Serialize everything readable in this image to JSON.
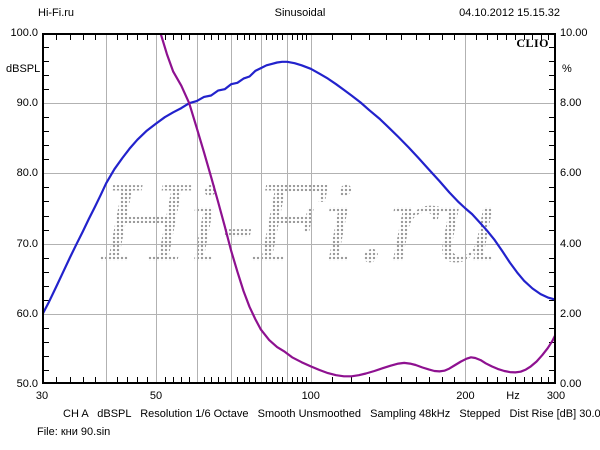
{
  "header": {
    "site": "Hi-Fi.ru",
    "title": "Sinusoidal",
    "datetime": "04.10.2012 15.15.32"
  },
  "brand": {
    "logo": "CLIO"
  },
  "watermark": {
    "text": "Hi-Fi.ru"
  },
  "footer": {
    "status": "CH A   dBSPL   Resolution 1/6 Octave   Smooth Unsmoothed   Sampling 48kHz   Stepped   Dist Rise [dB] 30.00",
    "file": "File: кни 90.sin"
  },
  "colors": {
    "spl_curve": "#2222cc",
    "thd_curve": "#8e1190",
    "gridline": "#b2b2b2",
    "frame": "#000000",
    "watermark_dots": "#9b9b9b"
  },
  "chart_data": {
    "type": "line",
    "title": "Sinusoidal",
    "grid": true,
    "x_axis": {
      "scale": "log",
      "min": 30,
      "max": 300,
      "unit": "Hz",
      "ticks": [
        {
          "value": 30,
          "label": "30"
        },
        {
          "value": 50,
          "label": "50"
        },
        {
          "value": 100,
          "label": "100"
        },
        {
          "value": 200,
          "label": "200"
        },
        {
          "value": 300,
          "label": "300"
        }
      ],
      "gridlines": [
        40,
        50,
        60,
        70,
        80,
        90,
        100,
        200
      ],
      "minor_ticks": [
        32,
        34,
        36,
        38,
        42,
        44,
        46,
        48,
        52,
        54,
        56,
        58,
        62,
        64,
        66,
        68,
        72,
        74,
        76,
        78,
        82,
        84,
        86,
        88,
        92,
        94,
        96,
        98,
        110,
        120,
        130,
        140,
        150,
        160,
        170,
        180,
        190,
        210,
        220,
        230,
        240,
        250,
        260,
        270,
        280,
        290
      ]
    },
    "y_left": {
      "label": "dBSPL",
      "min": 50,
      "max": 100,
      "ticks": [
        {
          "value": 100,
          "label": "100.0"
        },
        {
          "value": 90,
          "label": "90.0"
        },
        {
          "value": 80,
          "label": "80.0"
        },
        {
          "value": 70,
          "label": "70.0"
        },
        {
          "value": 60,
          "label": "60.0"
        },
        {
          "value": 50,
          "label": "50.0"
        }
      ],
      "gridlines": [
        90,
        80,
        70,
        60
      ],
      "minor_ticks": [
        52,
        54,
        56,
        58,
        62,
        64,
        66,
        68,
        72,
        74,
        76,
        78,
        82,
        84,
        86,
        88,
        92,
        94,
        96,
        98
      ]
    },
    "y_right": {
      "label": "%",
      "min": 0,
      "max": 10,
      "ticks": [
        {
          "value": 10,
          "label": "10.00"
        },
        {
          "value": 8,
          "label": "8.00"
        },
        {
          "value": 6,
          "label": "6.00"
        },
        {
          "value": 4,
          "label": "4.00"
        },
        {
          "value": 2,
          "label": "2.00"
        },
        {
          "value": 0,
          "label": "0.00"
        }
      ]
    },
    "series": [
      {
        "name": "SPL (dBSPL, left axis)",
        "axis": "left",
        "color": "#2222cc",
        "points": [
          [
            30,
            59.8
          ],
          [
            31,
            61.8
          ],
          [
            32,
            63.9
          ],
          [
            33,
            66.0
          ],
          [
            34,
            68.0
          ],
          [
            35,
            69.9
          ],
          [
            36,
            71.7
          ],
          [
            37,
            73.5
          ],
          [
            38,
            75.2
          ],
          [
            39,
            76.9
          ],
          [
            40,
            78.6
          ],
          [
            41.5,
            80.6
          ],
          [
            43,
            82.2
          ],
          [
            44.5,
            83.6
          ],
          [
            46,
            84.8
          ],
          [
            48,
            86.1
          ],
          [
            50,
            87.1
          ],
          [
            52,
            88.0
          ],
          [
            54,
            88.7
          ],
          [
            56,
            89.3
          ],
          [
            58,
            90.0
          ],
          [
            60,
            90.3
          ],
          [
            62,
            90.9
          ],
          [
            64,
            91.1
          ],
          [
            66,
            91.8
          ],
          [
            68,
            92.0
          ],
          [
            70,
            92.7
          ],
          [
            72,
            92.9
          ],
          [
            74,
            93.5
          ],
          [
            76,
            93.8
          ],
          [
            78,
            94.6
          ],
          [
            80,
            95.0
          ],
          [
            82,
            95.4
          ],
          [
            84,
            95.6
          ],
          [
            86,
            95.8
          ],
          [
            88,
            95.9
          ],
          [
            90,
            95.9
          ],
          [
            93,
            95.7
          ],
          [
            96,
            95.4
          ],
          [
            100,
            94.9
          ],
          [
            104,
            94.2
          ],
          [
            108,
            93.5
          ],
          [
            112,
            92.7
          ],
          [
            116,
            91.9
          ],
          [
            120,
            91.1
          ],
          [
            125,
            90.1
          ],
          [
            130,
            89.0
          ],
          [
            136,
            87.8
          ],
          [
            142,
            86.5
          ],
          [
            148,
            85.2
          ],
          [
            155,
            83.7
          ],
          [
            162,
            82.2
          ],
          [
            170,
            80.5
          ],
          [
            178,
            78.9
          ],
          [
            186,
            77.3
          ],
          [
            194,
            75.9
          ],
          [
            200,
            75.0
          ],
          [
            206,
            74.2
          ],
          [
            212,
            73.2
          ],
          [
            220,
            71.9
          ],
          [
            228,
            70.5
          ],
          [
            236,
            68.9
          ],
          [
            244,
            67.3
          ],
          [
            252,
            65.9
          ],
          [
            260,
            64.7
          ],
          [
            270,
            63.6
          ],
          [
            280,
            62.8
          ],
          [
            290,
            62.3
          ],
          [
            300,
            62.0
          ]
        ]
      },
      {
        "name": "Distortion rise (%, right axis)",
        "axis": "right",
        "color": "#8e1190",
        "points": [
          [
            49.6,
            10.8
          ],
          [
            51,
            10.0
          ],
          [
            52.5,
            9.4
          ],
          [
            54,
            8.9
          ],
          [
            56,
            8.5
          ],
          [
            58,
            8.0
          ],
          [
            60,
            7.3
          ],
          [
            62,
            6.6
          ],
          [
            64,
            5.9
          ],
          [
            66,
            5.2
          ],
          [
            68,
            4.5
          ],
          [
            70,
            3.8
          ],
          [
            72,
            3.2
          ],
          [
            74,
            2.65
          ],
          [
            76,
            2.2
          ],
          [
            78,
            1.85
          ],
          [
            80,
            1.55
          ],
          [
            83,
            1.25
          ],
          [
            86,
            1.05
          ],
          [
            89,
            0.92
          ],
          [
            92,
            0.76
          ],
          [
            96,
            0.62
          ],
          [
            100,
            0.5
          ],
          [
            104,
            0.4
          ],
          [
            108,
            0.31
          ],
          [
            112,
            0.25
          ],
          [
            116,
            0.22
          ],
          [
            120,
            0.22
          ],
          [
            124,
            0.25
          ],
          [
            128,
            0.3
          ],
          [
            133,
            0.37
          ],
          [
            138,
            0.45
          ],
          [
            143,
            0.52
          ],
          [
            148,
            0.58
          ],
          [
            152,
            0.6
          ],
          [
            156,
            0.58
          ],
          [
            160,
            0.54
          ],
          [
            165,
            0.47
          ],
          [
            170,
            0.41
          ],
          [
            174,
            0.37
          ],
          [
            178,
            0.36
          ],
          [
            182,
            0.38
          ],
          [
            186,
            0.44
          ],
          [
            191,
            0.54
          ],
          [
            196,
            0.64
          ],
          [
            201,
            0.72
          ],
          [
            205,
            0.76
          ],
          [
            209,
            0.74
          ],
          [
            214,
            0.68
          ],
          [
            219,
            0.59
          ],
          [
            225,
            0.5
          ],
          [
            231,
            0.43
          ],
          [
            238,
            0.37
          ],
          [
            244,
            0.34
          ],
          [
            250,
            0.33
          ],
          [
            256,
            0.35
          ],
          [
            262,
            0.41
          ],
          [
            268,
            0.5
          ],
          [
            275,
            0.64
          ],
          [
            282,
            0.82
          ],
          [
            289,
            1.02
          ],
          [
            295,
            1.22
          ],
          [
            300,
            1.43
          ]
        ]
      }
    ]
  }
}
